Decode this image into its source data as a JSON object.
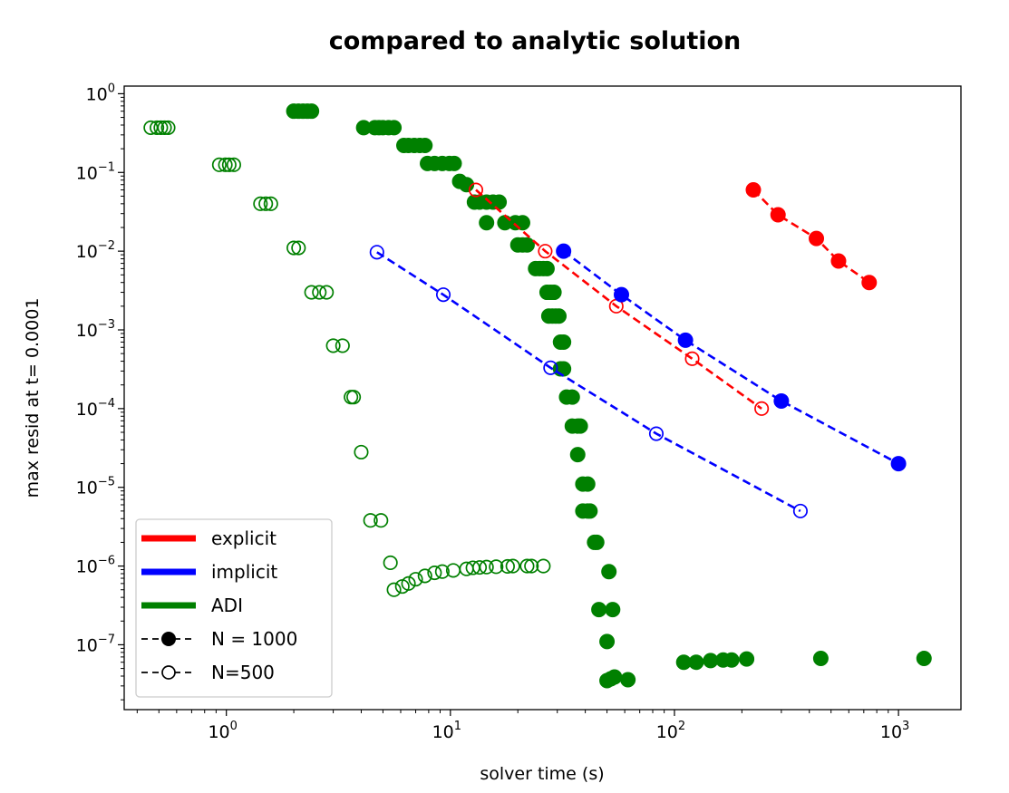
{
  "chart_data": {
    "type": "scatter",
    "title": "compared to analytic solution",
    "xlabel": "solver time (s)",
    "ylabel": "max resid at t= 0.0001",
    "xscale": "log",
    "yscale": "log",
    "xlim": [
      0.35,
      1900
    ],
    "ylim": [
      1.5e-08,
      1.25
    ],
    "grid": false,
    "legend_position": "lower-left",
    "x_ticks": [
      {
        "value": 1,
        "base": "10",
        "exp": "0"
      },
      {
        "value": 10,
        "base": "10",
        "exp": "1"
      },
      {
        "value": 100,
        "base": "10",
        "exp": "2"
      },
      {
        "value": 1000,
        "base": "10",
        "exp": "3"
      }
    ],
    "y_ticks": [
      {
        "value": 1,
        "base": "10",
        "exp": "0"
      },
      {
        "value": 0.1,
        "base": "10",
        "exp": "−1"
      },
      {
        "value": 0.01,
        "base": "10",
        "exp": "−2"
      },
      {
        "value": 0.001,
        "base": "10",
        "exp": "−3"
      },
      {
        "value": 0.0001,
        "base": "10",
        "exp": "−4"
      },
      {
        "value": 1e-05,
        "base": "10",
        "exp": "−5"
      },
      {
        "value": 1e-06,
        "base": "10",
        "exp": "−6"
      },
      {
        "value": 1e-07,
        "base": "10",
        "exp": "−7"
      }
    ],
    "legend": [
      {
        "label": "explicit",
        "kind": "line",
        "color": "#ff0000"
      },
      {
        "label": "implicit",
        "kind": "line",
        "color": "#0000ff"
      },
      {
        "label": "ADI",
        "kind": "line",
        "color": "#008000"
      },
      {
        "label": "N = 1000",
        "kind": "filled",
        "color": "#000000"
      },
      {
        "label": "N=500",
        "kind": "open",
        "color": "#000000"
      }
    ],
    "series": [
      {
        "name": "explicit",
        "group": "N = 1000",
        "color": "#ff0000",
        "marker": "filled",
        "line": "dashed",
        "points": [
          [
            225,
            0.06
          ],
          [
            290,
            0.029
          ],
          [
            430,
            0.0145
          ],
          [
            540,
            0.0075
          ],
          [
            740,
            0.004
          ]
        ]
      },
      {
        "name": "explicit",
        "group": "N=500",
        "color": "#ff0000",
        "marker": "open",
        "line": "dashed",
        "points": [
          [
            13,
            0.06
          ],
          [
            26.5,
            0.01
          ],
          [
            55,
            0.002
          ],
          [
            120,
            0.00043
          ],
          [
            245,
            0.0001
          ]
        ]
      },
      {
        "name": "implicit",
        "group": "N = 1000",
        "color": "#0000ff",
        "marker": "filled",
        "line": "dashed",
        "points": [
          [
            32,
            0.01
          ],
          [
            58,
            0.0028
          ],
          [
            112,
            0.00074
          ],
          [
            300,
            0.000125
          ],
          [
            1000,
            2e-05
          ]
        ]
      },
      {
        "name": "implicit",
        "group": "N=500",
        "color": "#0000ff",
        "marker": "open",
        "line": "dashed",
        "points": [
          [
            4.7,
            0.0097
          ],
          [
            9.3,
            0.0028
          ],
          [
            28,
            0.00033
          ],
          [
            83,
            4.8e-05
          ],
          [
            365,
            5e-06
          ]
        ]
      },
      {
        "name": "ADI",
        "group": "N = 1000",
        "color": "#008000",
        "marker": "filled",
        "line": "none",
        "points": [
          [
            2.0,
            0.6
          ],
          [
            2.1,
            0.6
          ],
          [
            2.2,
            0.6
          ],
          [
            2.3,
            0.6
          ],
          [
            2.4,
            0.6
          ],
          [
            4.1,
            0.37
          ],
          [
            4.6,
            0.37
          ],
          [
            4.8,
            0.37
          ],
          [
            5.0,
            0.37
          ],
          [
            5.3,
            0.37
          ],
          [
            5.6,
            0.37
          ],
          [
            6.2,
            0.22
          ],
          [
            6.5,
            0.22
          ],
          [
            6.9,
            0.22
          ],
          [
            7.3,
            0.22
          ],
          [
            7.7,
            0.22
          ],
          [
            7.9,
            0.13
          ],
          [
            8.5,
            0.13
          ],
          [
            9.2,
            0.13
          ],
          [
            9.9,
            0.13
          ],
          [
            10.4,
            0.13
          ],
          [
            11.0,
            0.077
          ],
          [
            11.8,
            0.07
          ],
          [
            12.8,
            0.042
          ],
          [
            13.5,
            0.042
          ],
          [
            14.5,
            0.042
          ],
          [
            15.5,
            0.042
          ],
          [
            16.5,
            0.042
          ],
          [
            14.5,
            0.023
          ],
          [
            17.5,
            0.023
          ],
          [
            19.5,
            0.023
          ],
          [
            21,
            0.023
          ],
          [
            20,
            0.012
          ],
          [
            21,
            0.012
          ],
          [
            22,
            0.012
          ],
          [
            24,
            0.006
          ],
          [
            25,
            0.006
          ],
          [
            26,
            0.006
          ],
          [
            27,
            0.006
          ],
          [
            27,
            0.003
          ],
          [
            28,
            0.003
          ],
          [
            29,
            0.003
          ],
          [
            27.5,
            0.0015
          ],
          [
            28.5,
            0.0015
          ],
          [
            29.5,
            0.0015
          ],
          [
            30.5,
            0.0015
          ],
          [
            31,
            0.0007
          ],
          [
            32,
            0.0007
          ],
          [
            31,
            0.00032
          ],
          [
            32,
            0.00032
          ],
          [
            33,
            0.00014
          ],
          [
            35,
            0.00014
          ],
          [
            35,
            6e-05
          ],
          [
            37,
            6e-05
          ],
          [
            38,
            6e-05
          ],
          [
            37,
            2.6e-05
          ],
          [
            39,
            1.1e-05
          ],
          [
            41,
            1.1e-05
          ],
          [
            39,
            5e-06
          ],
          [
            41,
            5e-06
          ],
          [
            42,
            5e-06
          ],
          [
            44,
            2e-06
          ],
          [
            45,
            2e-06
          ],
          [
            51,
            8.5e-07
          ],
          [
            46,
            2.8e-07
          ],
          [
            53,
            2.8e-07
          ],
          [
            50,
            1.1e-07
          ],
          [
            50,
            3.5e-08
          ],
          [
            52,
            3.7e-08
          ],
          [
            54,
            3.9e-08
          ],
          [
            62,
            3.6e-08
          ],
          [
            110,
            6e-08
          ],
          [
            125,
            6e-08
          ],
          [
            145,
            6.3e-08
          ],
          [
            165,
            6.4e-08
          ],
          [
            180,
            6.4e-08
          ],
          [
            210,
            6.6e-08
          ],
          [
            450,
            6.7e-08
          ],
          [
            1300,
            6.7e-08
          ]
        ]
      },
      {
        "name": "ADI",
        "group": "N=500",
        "color": "#008000",
        "marker": "open",
        "line": "none",
        "points": [
          [
            0.46,
            0.37
          ],
          [
            0.49,
            0.37
          ],
          [
            0.51,
            0.37
          ],
          [
            0.53,
            0.37
          ],
          [
            0.55,
            0.37
          ],
          [
            0.93,
            0.125
          ],
          [
            0.99,
            0.125
          ],
          [
            1.03,
            0.125
          ],
          [
            1.08,
            0.125
          ],
          [
            1.42,
            0.04
          ],
          [
            1.5,
            0.04
          ],
          [
            1.58,
            0.04
          ],
          [
            2.0,
            0.011
          ],
          [
            2.1,
            0.011
          ],
          [
            2.4,
            0.003
          ],
          [
            2.6,
            0.003
          ],
          [
            2.8,
            0.003
          ],
          [
            3.0,
            0.00063
          ],
          [
            3.3,
            0.00063
          ],
          [
            3.6,
            0.00014
          ],
          [
            3.7,
            0.00014
          ],
          [
            4.0,
            2.8e-05
          ],
          [
            4.4,
            3.8e-06
          ],
          [
            4.9,
            3.8e-06
          ],
          [
            5.4,
            1.1e-06
          ],
          [
            5.6,
            5e-07
          ],
          [
            6.1,
            5.5e-07
          ],
          [
            6.5,
            6e-07
          ],
          [
            7.0,
            6.8e-07
          ],
          [
            7.7,
            7.5e-07
          ],
          [
            8.5,
            8.2e-07
          ],
          [
            9.2,
            8.5e-07
          ],
          [
            10.3,
            8.8e-07
          ],
          [
            11.8,
            9.2e-07
          ],
          [
            12.6,
            9.5e-07
          ],
          [
            13.5,
            9.6e-07
          ],
          [
            14.5,
            9.7e-07
          ],
          [
            16,
            9.8e-07
          ],
          [
            18,
            9.9e-07
          ],
          [
            19,
            1e-06
          ],
          [
            22,
            1e-06
          ],
          [
            23,
            1e-06
          ],
          [
            26,
            1e-06
          ]
        ]
      }
    ]
  }
}
